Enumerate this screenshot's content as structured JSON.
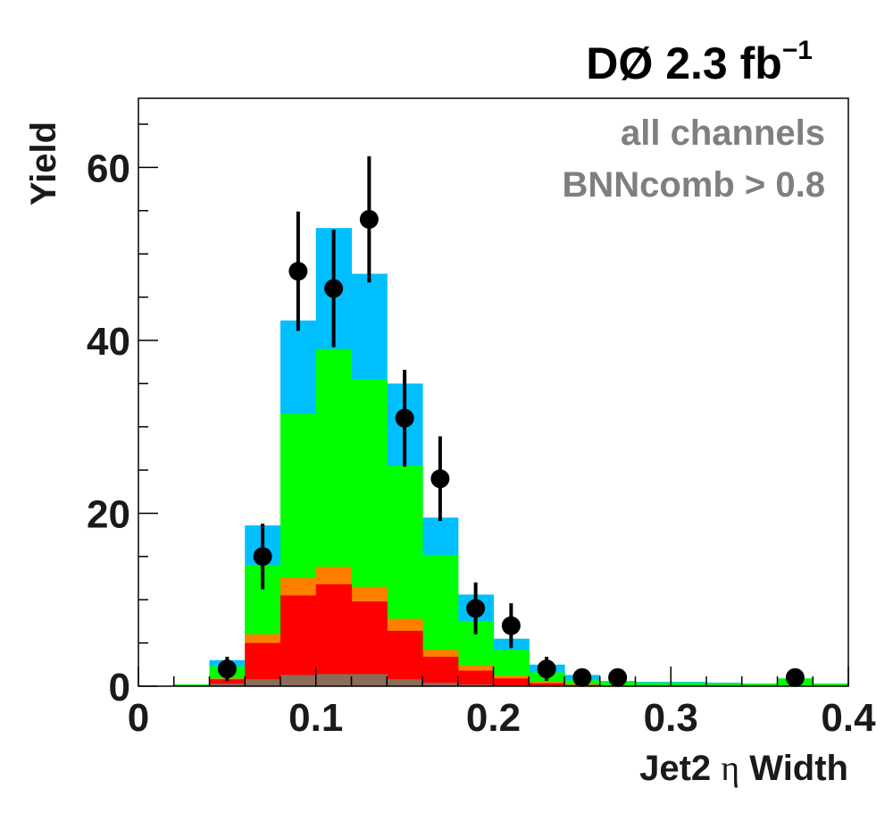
{
  "chart_data": {
    "type": "bar",
    "title": "DØ  2.3 fb",
    "title_superscript": "−1",
    "xlabel_main": "Jet2 ",
    "xlabel_symbol": "η",
    "xlabel_end": " Width",
    "ylabel": "Yield",
    "annotations": [
      "all channels",
      "BNNcomb > 0.8"
    ],
    "xlim": [
      0,
      0.4
    ],
    "ylim": [
      0,
      68
    ],
    "x_ticks": [
      0,
      0.1,
      0.2,
      0.3,
      0.4
    ],
    "x_tick_labels": [
      "0",
      "0.1",
      "0.2",
      "0.3",
      "0.4"
    ],
    "y_ticks": [
      0,
      20,
      40,
      60
    ],
    "y_tick_labels": [
      "0",
      "20",
      "40",
      "60"
    ],
    "bin_edges": [
      0.02,
      0.04,
      0.06,
      0.08,
      0.1,
      0.12,
      0.14,
      0.16,
      0.18,
      0.2,
      0.22,
      0.24,
      0.26,
      0.28,
      0.3,
      0.32,
      0.34,
      0.36,
      0.38,
      0.4
    ],
    "stack": [
      {
        "color": "#8b6b5a",
        "values": [
          0,
          0.3,
          0.8,
          1.3,
          1.4,
          1.4,
          0.8,
          0.4,
          0.2,
          0.1,
          0.05,
          0,
          0,
          0,
          0,
          0,
          0,
          0,
          0
        ]
      },
      {
        "color": "#ff0000",
        "values": [
          0,
          0.8,
          5.0,
          10.5,
          11.8,
          9.8,
          6.4,
          3.4,
          1.8,
          0.9,
          0.35,
          0.15,
          0.05,
          0.05,
          0.05,
          0,
          0,
          0,
          0
        ]
      },
      {
        "color": "#ff7f00",
        "values": [
          0,
          0.9,
          6.0,
          12.5,
          13.8,
          11.5,
          7.8,
          4.2,
          2.4,
          1.2,
          0.5,
          0.2,
          0.1,
          0.1,
          0.1,
          0,
          0,
          0,
          0
        ]
      },
      {
        "color": "#00ff00",
        "values": [
          0.2,
          2.3,
          14.0,
          31.5,
          39.0,
          35.5,
          25.5,
          15.2,
          7.5,
          4.2,
          1.6,
          0.7,
          0.5,
          0.4,
          0.4,
          0.3,
          0.3,
          0.9,
          0.3
        ]
      },
      {
        "color": "#00bfff",
        "values": [
          0.2,
          3.0,
          18.6,
          42.3,
          53.0,
          47.7,
          35.0,
          19.5,
          10.6,
          5.5,
          2.5,
          1.3,
          0.6,
          0.5,
          0.5,
          0.4,
          0.3,
          0.9,
          0.3
        ]
      }
    ],
    "data_points": {
      "x": [
        0.05,
        0.07,
        0.09,
        0.11,
        0.13,
        0.15,
        0.17,
        0.19,
        0.21,
        0.23,
        0.25,
        0.27,
        0.37
      ],
      "y": [
        2,
        15,
        48,
        46,
        54,
        31,
        24,
        9,
        7,
        2,
        1,
        1,
        1
      ],
      "err_low": [
        1.4,
        3.8,
        6.9,
        6.8,
        7.3,
        5.6,
        4.9,
        3.0,
        2.6,
        1.4,
        1.0,
        1.0,
        1.0
      ],
      "err_high": [
        1.4,
        3.8,
        6.9,
        6.8,
        7.3,
        5.6,
        4.9,
        3.0,
        2.6,
        1.4,
        1.0,
        1.0,
        1.0
      ]
    }
  }
}
